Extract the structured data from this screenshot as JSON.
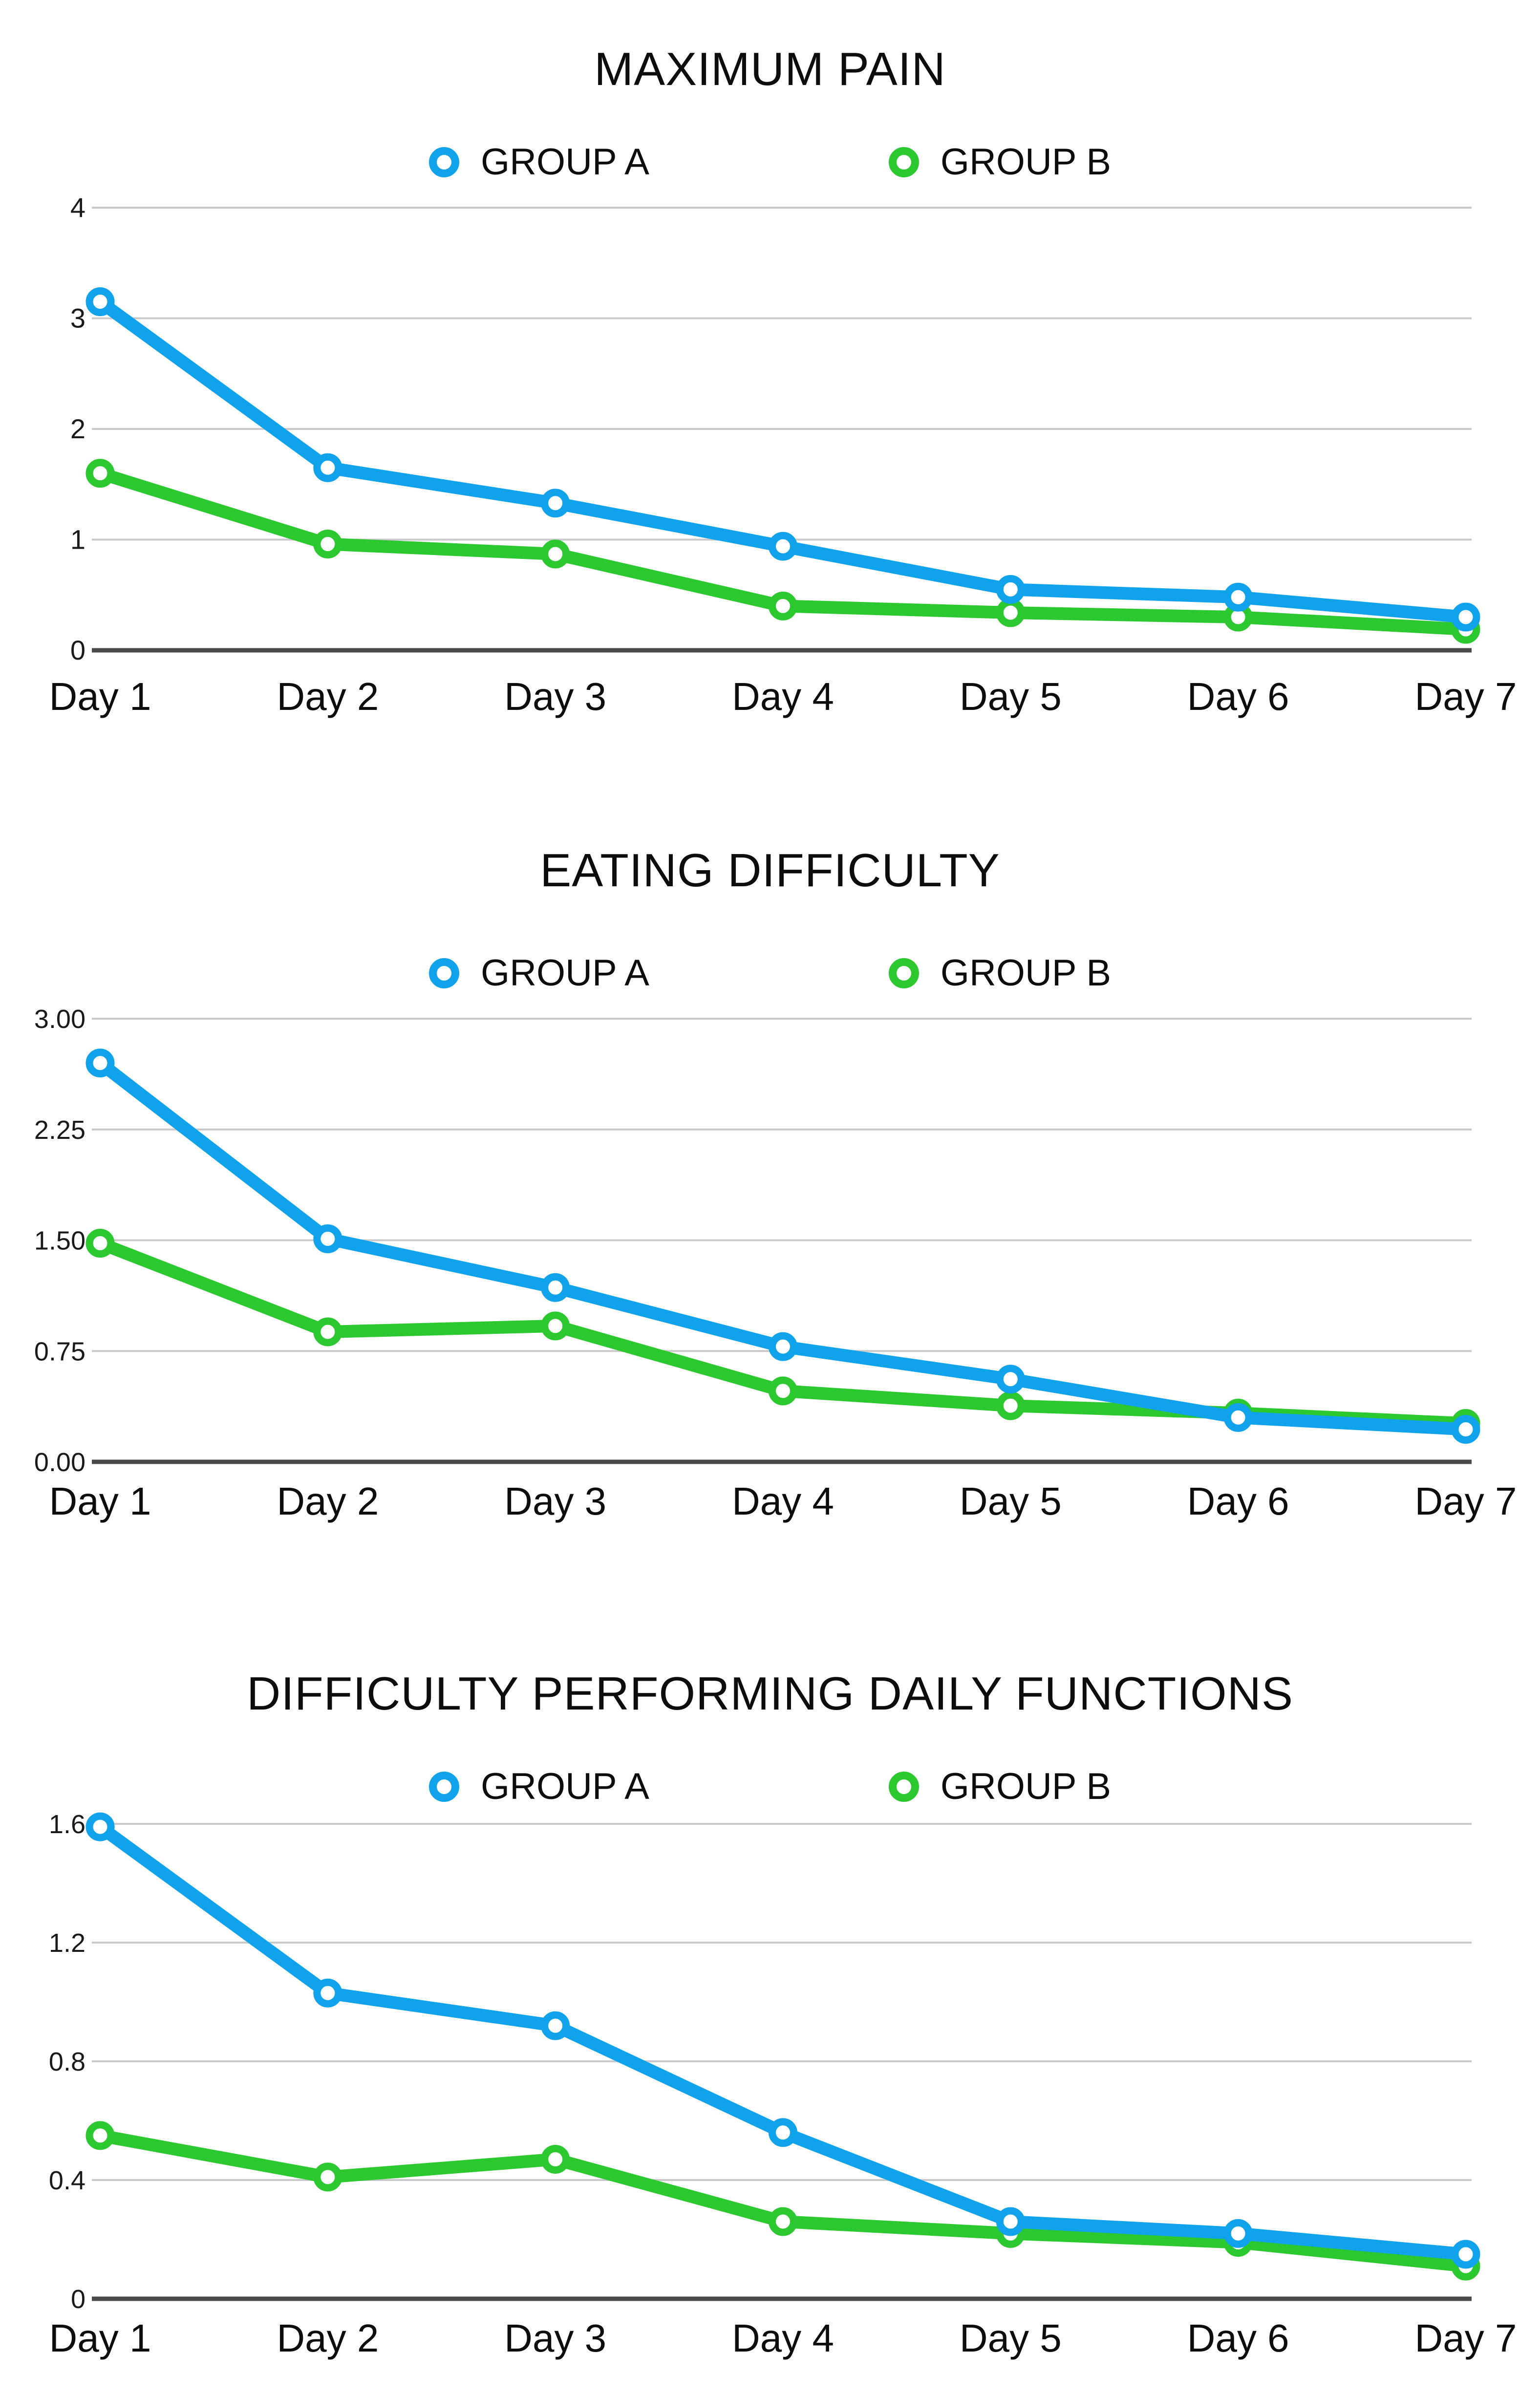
{
  "colors": {
    "group_a": "#10A3EB",
    "group_b": "#2BC82F",
    "gridline": "#C9C9C9",
    "axis_line": "#4A4A4A",
    "text": "#111111",
    "background": "#FFFFFF"
  },
  "chart_data": [
    {
      "type": "line",
      "title": "MAXIMUM PAIN",
      "categories": [
        "Day 1",
        "Day 2",
        "Day 3",
        "Day 4",
        "Day 5",
        "Day 6",
        "Day 7"
      ],
      "series": [
        {
          "name": "GROUP A",
          "color": "#10A3EB",
          "values": [
            3.15,
            1.65,
            1.33,
            0.94,
            0.55,
            0.48,
            0.3
          ]
        },
        {
          "name": "GROUP B",
          "color": "#2BC82F",
          "values": [
            1.6,
            0.96,
            0.87,
            0.4,
            0.34,
            0.3,
            0.19
          ]
        }
      ],
      "ylim": [
        0,
        4
      ],
      "ytick_values": [
        0,
        1,
        2,
        3,
        4
      ],
      "ytick_labels": [
        "0",
        "1",
        "2",
        "3",
        "4"
      ],
      "grid": true,
      "legend_position": "top-center",
      "marker": "open-circle"
    },
    {
      "type": "line",
      "title": "EATING DIFFICULTY",
      "categories": [
        "Day 1",
        "Day 2",
        "Day 3",
        "Day 4",
        "Day 5",
        "Day 6",
        "Day 7"
      ],
      "series": [
        {
          "name": "GROUP A",
          "color": "#10A3EB",
          "values": [
            2.7,
            1.51,
            1.18,
            0.78,
            0.56,
            0.3,
            0.22
          ]
        },
        {
          "name": "GROUP B",
          "color": "#2BC82F",
          "values": [
            1.48,
            0.88,
            0.92,
            0.48,
            0.38,
            0.33,
            0.26
          ]
        }
      ],
      "ylim": [
        0,
        3
      ],
      "ytick_values": [
        0,
        0.75,
        1.5,
        2.25,
        3
      ],
      "ytick_labels": [
        "0.00",
        "0.75",
        "1.50",
        "2.25",
        "3.00"
      ],
      "grid": true,
      "legend_position": "top-center",
      "marker": "open-circle"
    },
    {
      "type": "line",
      "title": "DIFFICULTY PERFORMING DAILY FUNCTIONS",
      "categories": [
        "Day 1",
        "Day 2",
        "Day 3",
        "Day 4",
        "Day 5",
        "Day 6",
        "Day 7"
      ],
      "series": [
        {
          "name": "GROUP A",
          "color": "#10A3EB",
          "values": [
            1.59,
            1.03,
            0.92,
            0.56,
            0.26,
            0.22,
            0.15
          ]
        },
        {
          "name": "GROUP B",
          "color": "#2BC82F",
          "values": [
            0.55,
            0.41,
            0.47,
            0.26,
            0.22,
            0.19,
            0.11
          ]
        }
      ],
      "ylim": [
        0,
        1.6
      ],
      "ytick_values": [
        0,
        0.4,
        0.8,
        1.2,
        1.6
      ],
      "ytick_labels": [
        "0",
        "0.4",
        "0.8",
        "1.2",
        "1.6"
      ],
      "grid": true,
      "legend_position": "top-center",
      "marker": "open-circle"
    }
  ]
}
